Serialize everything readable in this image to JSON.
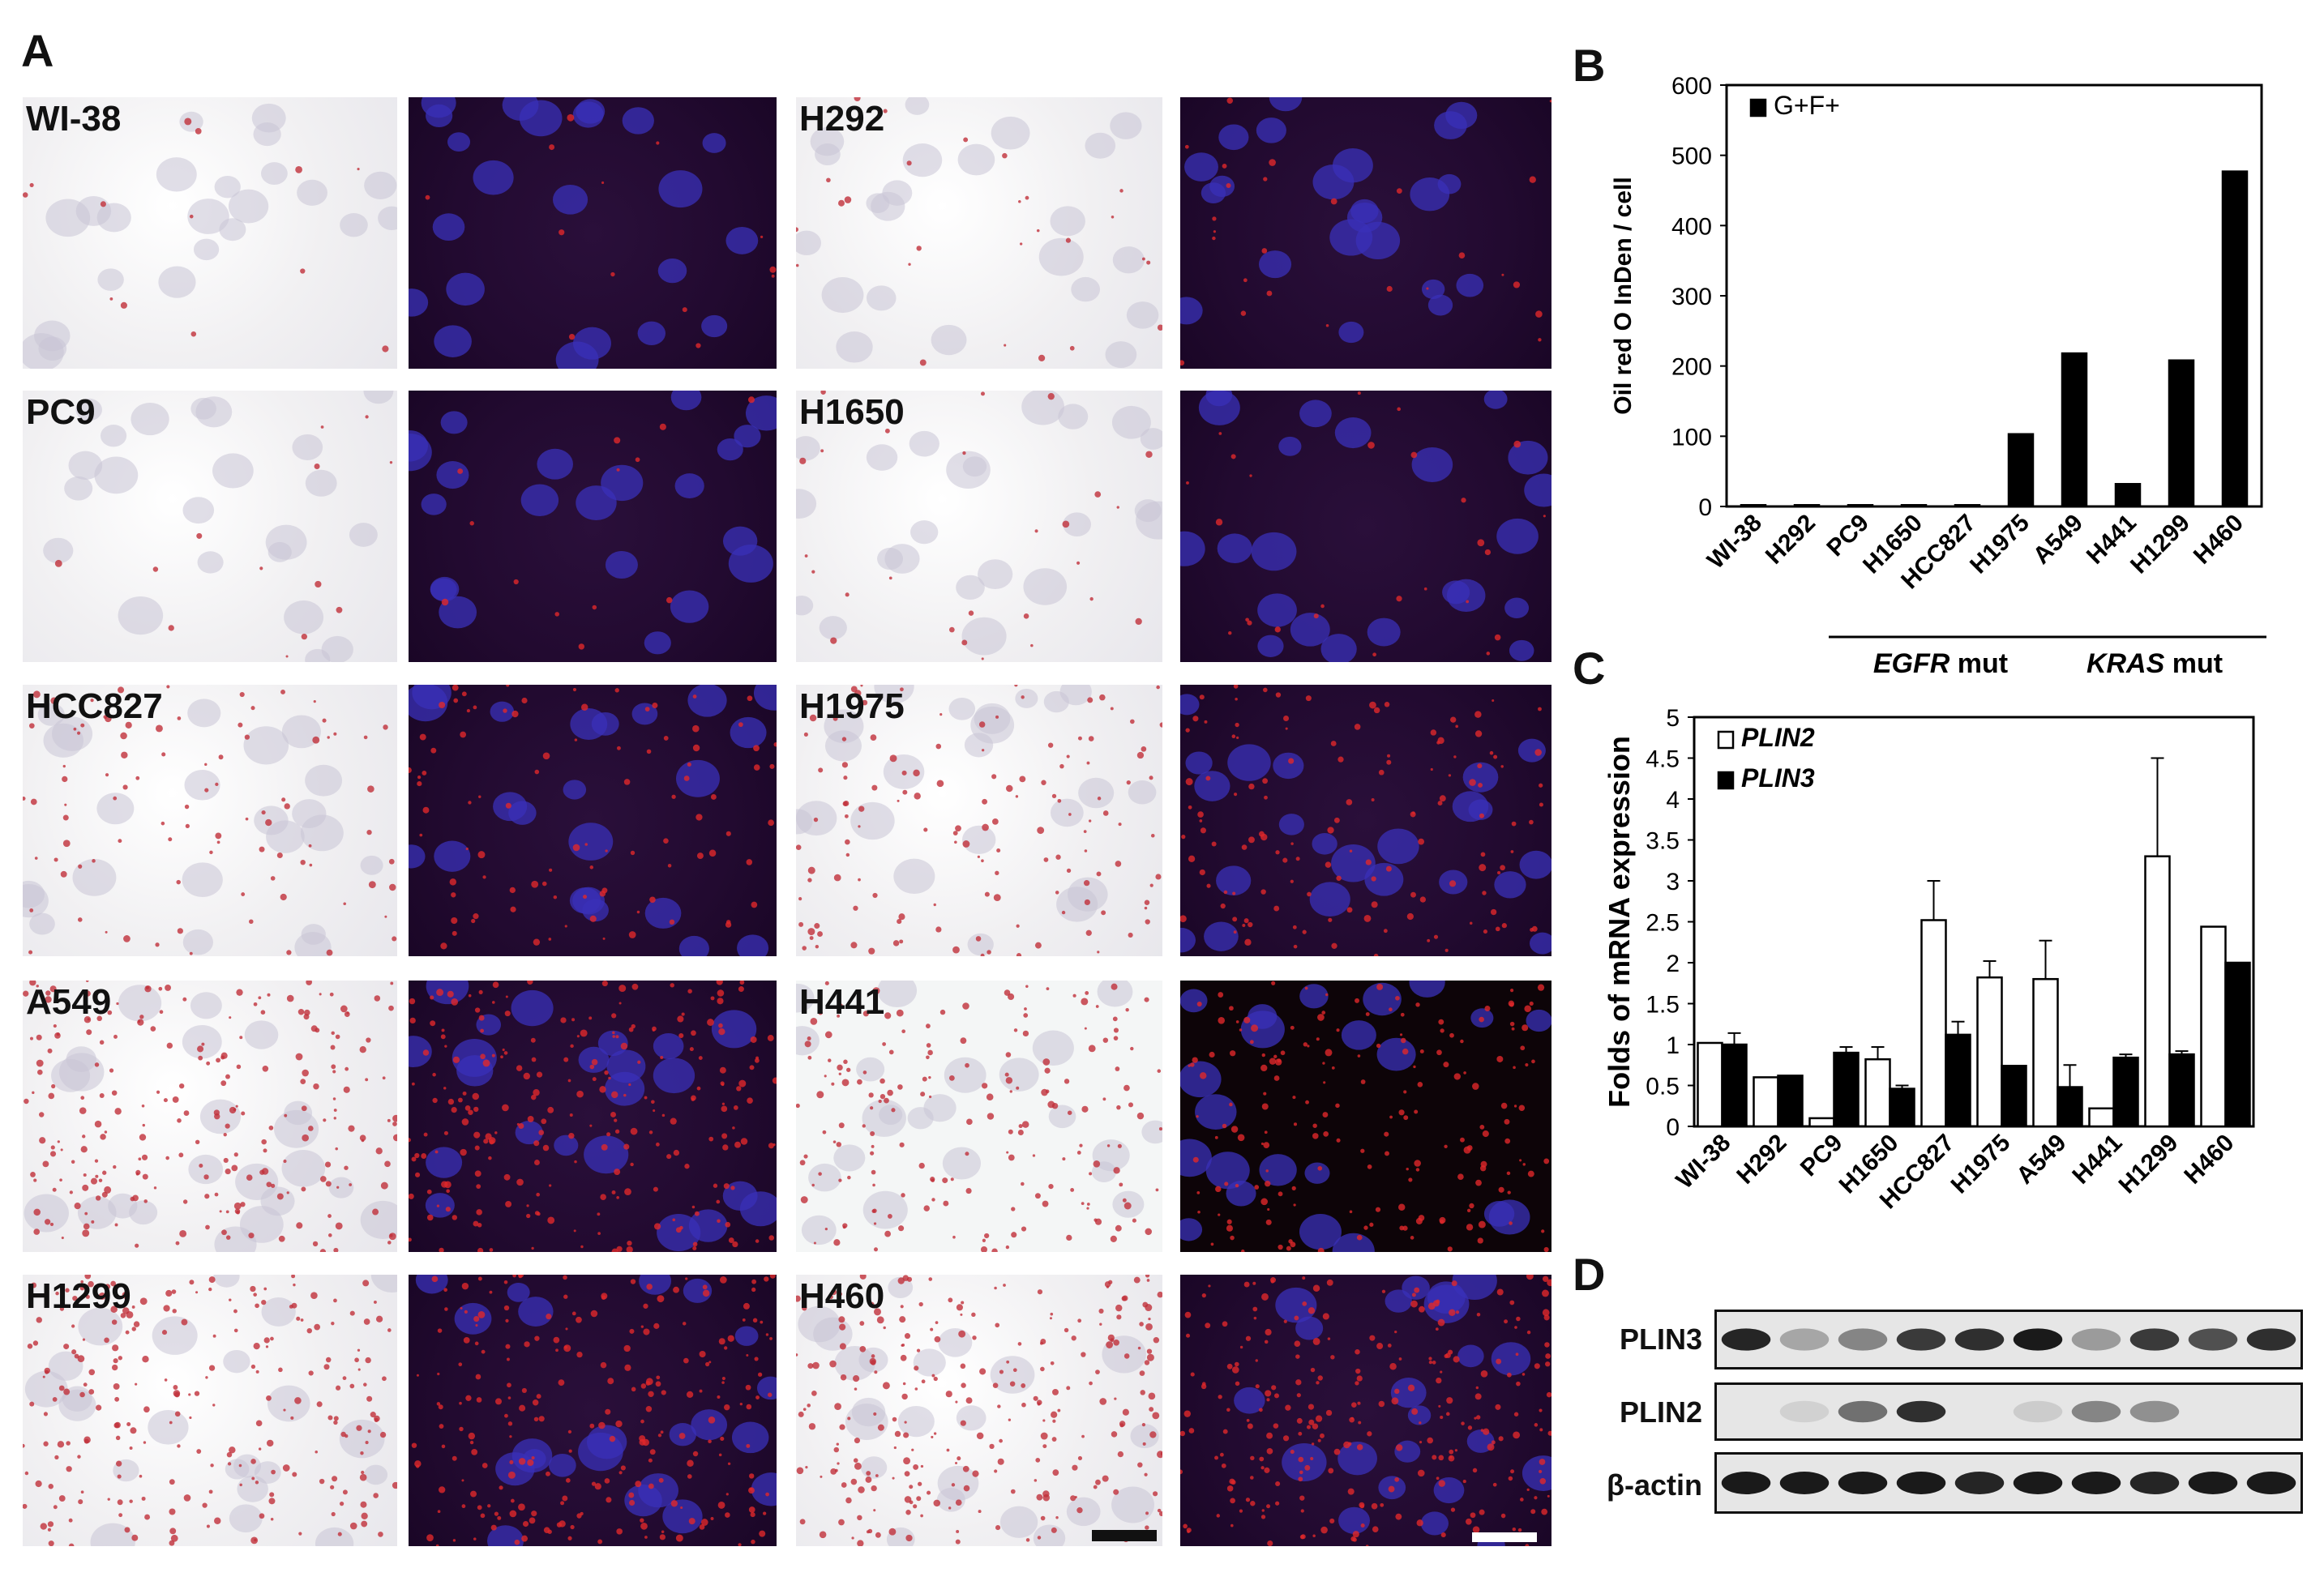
{
  "panels": {
    "a": "A",
    "b": "B",
    "c": "C",
    "d": "D"
  },
  "micrographs": [
    {
      "label": "WI-38"
    },
    {
      "label": "H292"
    },
    {
      "label": "PC9"
    },
    {
      "label": "H1650"
    },
    {
      "label": "HCC827"
    },
    {
      "label": "H1975"
    },
    {
      "label": "A549"
    },
    {
      "label": "H441"
    },
    {
      "label": "H1299"
    },
    {
      "label": "H460"
    }
  ],
  "chart_data": [
    {
      "type": "bar",
      "panel": "B",
      "categories": [
        "WI-38",
        "H292",
        "PC9",
        "H1650",
        "HCC827",
        "H1975",
        "A549",
        "H441",
        "H1299",
        "H460"
      ],
      "series": [
        {
          "name": "G+F+",
          "values": [
            2,
            2,
            2,
            2,
            2,
            103,
            218,
            32,
            208,
            477
          ],
          "color": "#000000"
        }
      ],
      "ylabel": "Oil red O InDen / cell",
      "ylim": [
        0,
        600
      ],
      "yticks": [
        0,
        100,
        200,
        300,
        400,
        500,
        600
      ],
      "legend": "top-left",
      "groups": [
        {
          "prefix": "",
          "italic": "EGFR",
          "suffix": " mut",
          "from": "PC9",
          "to": "H1975"
        },
        {
          "prefix": "",
          "italic": "KRAS",
          "suffix": " mut",
          "from": "A549",
          "to": "H460"
        }
      ]
    },
    {
      "type": "bar",
      "panel": "C",
      "categories": [
        "WI-38",
        "H292",
        "PC9",
        "H1650",
        "HCC827",
        "H1975",
        "A549",
        "H441",
        "H1299",
        "H460"
      ],
      "series": [
        {
          "name": "PLIN2",
          "values": [
            1.02,
            0.6,
            0.1,
            0.82,
            2.52,
            1.82,
            1.8,
            0.22,
            3.3,
            2.44
          ],
          "errors": [
            0.0,
            0.0,
            0.0,
            0.15,
            0.48,
            0.2,
            0.47,
            0.0,
            1.2,
            0.0
          ],
          "color": "#ffffff"
        },
        {
          "name": "PLIN3",
          "values": [
            1.0,
            0.62,
            0.9,
            0.46,
            1.12,
            0.74,
            0.48,
            0.84,
            0.88,
            2.0
          ],
          "errors": [
            0.14,
            0.0,
            0.07,
            0.04,
            0.16,
            0.0,
            0.27,
            0.04,
            0.04,
            0.0
          ],
          "color": "#000000"
        }
      ],
      "ylabel": "Folds of  mRNA expression",
      "ylim": [
        0,
        5
      ],
      "yticks": [
        "0",
        "0.5",
        "1",
        "1.5",
        "2",
        "2.5",
        "3",
        "3.5",
        "4",
        "4.5",
        "5"
      ],
      "legend": "top-left"
    }
  ],
  "blot": {
    "rows": [
      {
        "label": "PLIN3",
        "intensities": [
          0.9,
          0.3,
          0.45,
          0.8,
          0.85,
          0.95,
          0.35,
          0.8,
          0.7,
          0.85
        ]
      },
      {
        "label": "PLIN2",
        "intensities": [
          0.0,
          0.1,
          0.55,
          0.85,
          0.0,
          0.12,
          0.45,
          0.4,
          0.0,
          0.0
        ]
      },
      {
        "label": "β-actin",
        "intensities": [
          0.95,
          0.95,
          0.95,
          0.95,
          0.9,
          0.95,
          0.95,
          0.9,
          0.95,
          0.95
        ]
      }
    ]
  }
}
